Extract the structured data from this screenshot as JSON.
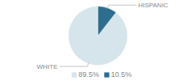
{
  "chart_data": {
    "type": "pie",
    "categories": [
      "WHITE",
      "HISPANIC"
    ],
    "values": [
      89.5,
      10.5
    ],
    "value_labels": [
      "89.5%",
      "10.5%"
    ],
    "colors": [
      "#d6e4ec",
      "#2e6d8e"
    ],
    "legend": "bottom"
  }
}
